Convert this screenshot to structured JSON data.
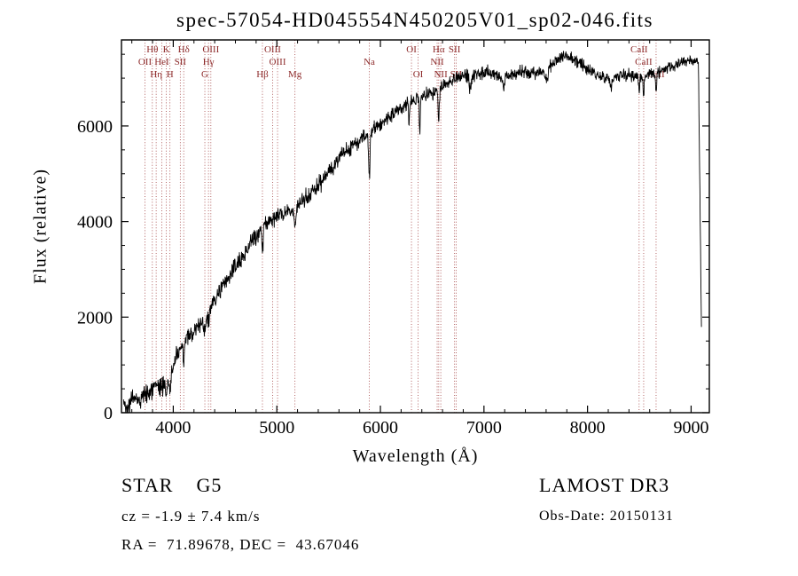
{
  "chart_data": {
    "type": "line",
    "title": "spec-57054-HD045554N450205V01_sp02-046.fits",
    "xlabel": "Wavelength (Å)",
    "ylabel": "Flux (relative)",
    "xlim": [
      3500,
      9176
    ],
    "ylim": [
      0,
      7800
    ],
    "xticks": [
      4000,
      5000,
      6000,
      7000,
      8000,
      9000
    ],
    "yticks": [
      0,
      2000,
      4000,
      6000
    ],
    "x_minor_step": 200,
    "y_minor_step": 500,
    "grid": false,
    "line_color": "#000000",
    "marker_color": "#a03c3c",
    "spectral_lines": [
      {
        "label": "OII",
        "wavelength": 3727,
        "row": 1
      },
      {
        "label": "Hθ",
        "wavelength": 3798,
        "row": 0
      },
      {
        "label": "Hη",
        "wavelength": 3835,
        "row": 2
      },
      {
        "label": "HeI",
        "wavelength": 3889,
        "row": 1
      },
      {
        "label": "K",
        "wavelength": 3933,
        "row": 0
      },
      {
        "label": "H",
        "wavelength": 3968,
        "row": 2
      },
      {
        "label": "SII",
        "wavelength": 4068,
        "row": 1
      },
      {
        "label": "Hδ",
        "wavelength": 4101,
        "row": 0
      },
      {
        "label": "G",
        "wavelength": 4305,
        "row": 2
      },
      {
        "label": "Hγ",
        "wavelength": 4340,
        "row": 1
      },
      {
        "label": "OIII",
        "wavelength": 4363,
        "row": 0
      },
      {
        "label": "Hβ",
        "wavelength": 4861,
        "row": 2
      },
      {
        "label": "OIII",
        "wavelength": 4959,
        "row": 0
      },
      {
        "label": "OIII",
        "wavelength": 5007,
        "row": 1
      },
      {
        "label": "Mg",
        "wavelength": 5175,
        "row": 2
      },
      {
        "label": "Na",
        "wavelength": 5893,
        "row": 1
      },
      {
        "label": "OI",
        "wavelength": 6300,
        "row": 0
      },
      {
        "label": "OI",
        "wavelength": 6364,
        "row": 2
      },
      {
        "label": "NII",
        "wavelength": 6548,
        "row": 1
      },
      {
        "label": "Hα",
        "wavelength": 6563,
        "row": 0
      },
      {
        "label": "NII",
        "wavelength": 6583,
        "row": 2
      },
      {
        "label": "SII",
        "wavelength": 6716,
        "row": 0
      },
      {
        "label": "SII",
        "wavelength": 6731,
        "row": 2
      },
      {
        "label": "CaII",
        "wavelength": 8498,
        "row": 0
      },
      {
        "label": "CaII",
        "wavelength": 8542,
        "row": 1
      },
      {
        "label": "CaII",
        "wavelength": 8662,
        "row": 2
      }
    ],
    "continuum": [
      [
        3520,
        200
      ],
      [
        3560,
        130
      ],
      [
        3600,
        270
      ],
      [
        3640,
        310
      ],
      [
        3680,
        270
      ],
      [
        3720,
        350
      ],
      [
        3760,
        430
      ],
      [
        3800,
        490
      ],
      [
        3840,
        530
      ],
      [
        3880,
        550
      ],
      [
        3920,
        620
      ],
      [
        3960,
        720
      ],
      [
        4000,
        960
      ],
      [
        4040,
        1180
      ],
      [
        4080,
        1380
      ],
      [
        4120,
        1530
      ],
      [
        4160,
        1600
      ],
      [
        4200,
        1700
      ],
      [
        4240,
        1800
      ],
      [
        4280,
        1920
      ],
      [
        4320,
        2050
      ],
      [
        4360,
        2200
      ],
      [
        4400,
        2340
      ],
      [
        4440,
        2500
      ],
      [
        4480,
        2650
      ],
      [
        4520,
        2780
      ],
      [
        4560,
        2920
      ],
      [
        4600,
        3040
      ],
      [
        4640,
        3170
      ],
      [
        4680,
        3300
      ],
      [
        4720,
        3450
      ],
      [
        4760,
        3600
      ],
      [
        4800,
        3720
      ],
      [
        4840,
        3830
      ],
      [
        4880,
        3920
      ],
      [
        4920,
        4000
      ],
      [
        4960,
        4070
      ],
      [
        5000,
        4120
      ],
      [
        5040,
        4150
      ],
      [
        5080,
        4180
      ],
      [
        5120,
        4230
      ],
      [
        5160,
        4290
      ],
      [
        5200,
        4350
      ],
      [
        5240,
        4420
      ],
      [
        5280,
        4500
      ],
      [
        5320,
        4580
      ],
      [
        5360,
        4680
      ],
      [
        5400,
        4770
      ],
      [
        5440,
        4860
      ],
      [
        5480,
        4980
      ],
      [
        5520,
        5100
      ],
      [
        5560,
        5210
      ],
      [
        5600,
        5320
      ],
      [
        5640,
        5400
      ],
      [
        5680,
        5480
      ],
      [
        5720,
        5560
      ],
      [
        5760,
        5640
      ],
      [
        5800,
        5710
      ],
      [
        5840,
        5780
      ],
      [
        5880,
        5840
      ],
      [
        5920,
        5900
      ],
      [
        5960,
        5980
      ],
      [
        6000,
        6050
      ],
      [
        6040,
        6120
      ],
      [
        6080,
        6190
      ],
      [
        6120,
        6250
      ],
      [
        6160,
        6310
      ],
      [
        6200,
        6370
      ],
      [
        6240,
        6430
      ],
      [
        6280,
        6480
      ],
      [
        6320,
        6520
      ],
      [
        6360,
        6560
      ],
      [
        6400,
        6600
      ],
      [
        6440,
        6640
      ],
      [
        6480,
        6680
      ],
      [
        6520,
        6720
      ],
      [
        6560,
        6760
      ],
      [
        6600,
        6820
      ],
      [
        6640,
        6880
      ],
      [
        6680,
        6940
      ],
      [
        6720,
        6980
      ],
      [
        6760,
        7020
      ],
      [
        6800,
        7050
      ],
      [
        6840,
        7060
      ],
      [
        6880,
        7070
      ],
      [
        6920,
        7090
      ],
      [
        6960,
        7110
      ],
      [
        7000,
        7120
      ],
      [
        7040,
        7100
      ],
      [
        7080,
        7070
      ],
      [
        7120,
        7050
      ],
      [
        7160,
        7030
      ],
      [
        7200,
        7030
      ],
      [
        7240,
        7060
      ],
      [
        7280,
        7100
      ],
      [
        7320,
        7130
      ],
      [
        7360,
        7140
      ],
      [
        7400,
        7130
      ],
      [
        7440,
        7110
      ],
      [
        7480,
        7090
      ],
      [
        7520,
        7100
      ],
      [
        7560,
        7140
      ],
      [
        7600,
        7200
      ],
      [
        7640,
        7270
      ],
      [
        7680,
        7330
      ],
      [
        7720,
        7390
      ],
      [
        7760,
        7440
      ],
      [
        7800,
        7470
      ],
      [
        7840,
        7430
      ],
      [
        7880,
        7370
      ],
      [
        7920,
        7310
      ],
      [
        7960,
        7250
      ],
      [
        8000,
        7190
      ],
      [
        8040,
        7140
      ],
      [
        8080,
        7100
      ],
      [
        8120,
        7050
      ],
      [
        8160,
        7020
      ],
      [
        8200,
        7000
      ],
      [
        8240,
        6990
      ],
      [
        8280,
        7010
      ],
      [
        8320,
        7030
      ],
      [
        8360,
        7050
      ],
      [
        8400,
        7060
      ],
      [
        8440,
        7060
      ],
      [
        8480,
        7050
      ],
      [
        8520,
        7040
      ],
      [
        8560,
        7050
      ],
      [
        8600,
        7070
      ],
      [
        8640,
        7090
      ],
      [
        8680,
        7120
      ],
      [
        8720,
        7160
      ],
      [
        8760,
        7200
      ],
      [
        8800,
        7240
      ],
      [
        8840,
        7280
      ],
      [
        8880,
        7310
      ],
      [
        8920,
        7330
      ],
      [
        8960,
        7340
      ],
      [
        9000,
        7350
      ],
      [
        9040,
        7370
      ],
      [
        9070,
        7380
      ],
      [
        9100,
        1800
      ]
    ],
    "absorption_features": [
      {
        "wavelength": 3933,
        "depth": 300,
        "width": 7
      },
      {
        "wavelength": 3968,
        "depth": 300,
        "width": 7
      },
      {
        "wavelength": 4101,
        "depth": 350,
        "width": 6
      },
      {
        "wavelength": 4305,
        "depth": 350,
        "width": 9
      },
      {
        "wavelength": 4340,
        "depth": 300,
        "width": 6
      },
      {
        "wavelength": 4861,
        "depth": 500,
        "width": 6
      },
      {
        "wavelength": 5175,
        "depth": 400,
        "width": 11
      },
      {
        "wavelength": 5893,
        "depth": 1000,
        "width": 6
      },
      {
        "wavelength": 6276,
        "depth": 500,
        "width": 4
      },
      {
        "wavelength": 6380,
        "depth": 800,
        "width": 4
      },
      {
        "wavelength": 6563,
        "depth": 600,
        "width": 6
      },
      {
        "wavelength": 6870,
        "depth": 350,
        "width": 9
      },
      {
        "wavelength": 7190,
        "depth": 250,
        "width": 10
      },
      {
        "wavelength": 7605,
        "depth": 300,
        "width": 12
      },
      {
        "wavelength": 8227,
        "depth": 200,
        "width": 8
      },
      {
        "wavelength": 8498,
        "depth": 350,
        "width": 5
      },
      {
        "wavelength": 8542,
        "depth": 400,
        "width": 5
      },
      {
        "wavelength": 8662,
        "depth": 400,
        "width": 5
      }
    ],
    "noise": {
      "seed": 42,
      "amp_blue": 150,
      "amp_red": 85
    }
  },
  "footer": {
    "classification": "STAR    G5",
    "cz": "cz = -1.9 ± 7.4 km/s",
    "coords": "RA =  71.89678, DEC =  43.67046",
    "survey": "LAMOST DR3",
    "obs_date": "Obs-Date: 20150131"
  }
}
